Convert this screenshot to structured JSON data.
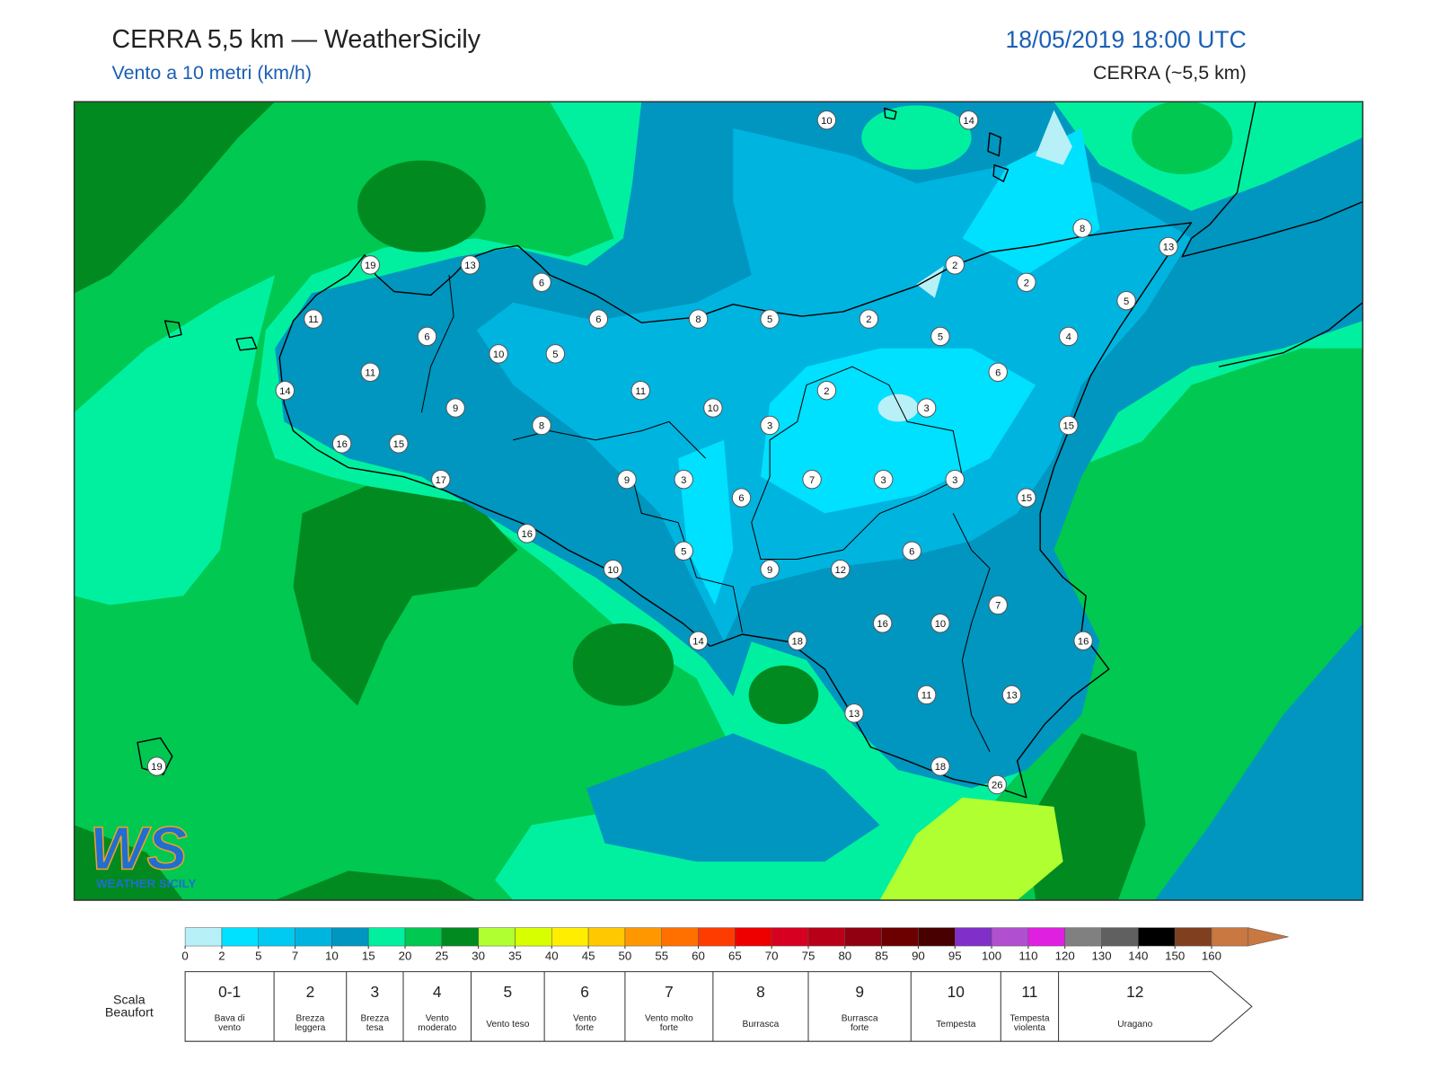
{
  "header": {
    "title": "CERRA 5,5 km — WeatherSicily",
    "subtitle": "Vento a 10 metri (km/h)",
    "datetime": "18/05/2019 18:00 UTC",
    "model": "CERRA (~5,5 km)"
  },
  "map": {
    "station_values": [
      10,
      14,
      8,
      13,
      19,
      13,
      6,
      2,
      2,
      5,
      11,
      6,
      8,
      5,
      2,
      6,
      10,
      5,
      5,
      4,
      11,
      6,
      14,
      11,
      2,
      10,
      9,
      3,
      8,
      3,
      15,
      16,
      15,
      17,
      9,
      3,
      7,
      3,
      3,
      6,
      15,
      16,
      6,
      5,
      10,
      9,
      12,
      7,
      16,
      10,
      18,
      14,
      16,
      11,
      13,
      13,
      19,
      18,
      26
    ]
  },
  "logo": {
    "mark": "WS",
    "text": "WEATHER SICILY"
  },
  "colorbar": {
    "ticks": [
      0,
      2,
      5,
      7,
      10,
      15,
      20,
      25,
      30,
      35,
      40,
      45,
      50,
      55,
      60,
      65,
      70,
      75,
      80,
      85,
      90,
      95,
      100,
      110,
      120,
      130,
      140,
      150,
      160
    ],
    "colors": [
      "#b8f0f8",
      "#00e0ff",
      "#00caf2",
      "#00b4e0",
      "#0096c0",
      "#00f0a0",
      "#00c850",
      "#008a20",
      "#b0ff30",
      "#d8ff00",
      "#ffee00",
      "#ffc800",
      "#ff9800",
      "#ff7000",
      "#ff3c00",
      "#ee0000",
      "#d80020",
      "#b80018",
      "#900010",
      "#6c0000",
      "#480000",
      "#8030c8",
      "#b050d0",
      "#e020e0",
      "#808080",
      "#606060",
      "#000000",
      "#804020",
      "#c87840"
    ],
    "extend_color": "#c87840"
  },
  "beaufort": {
    "title": [
      "Scala",
      "Beaufort"
    ],
    "classes": [
      {
        "force": "0-1",
        "label": [
          "Bava di",
          "vento"
        ]
      },
      {
        "force": 2,
        "label": [
          "Brezza",
          "leggera"
        ]
      },
      {
        "force": 3,
        "label": [
          "Brezza",
          "tesa"
        ]
      },
      {
        "force": 4,
        "label": [
          "Vento",
          "moderato"
        ]
      },
      {
        "force": 5,
        "label": [
          "Vento teso"
        ]
      },
      {
        "force": 6,
        "label": [
          "Vento",
          "forte"
        ]
      },
      {
        "force": 7,
        "label": [
          "Vento molto",
          "forte"
        ]
      },
      {
        "force": 8,
        "label": [
          "Burrasca"
        ]
      },
      {
        "force": 9,
        "label": [
          "Burrasca",
          "forte"
        ]
      },
      {
        "force": 10,
        "label": [
          "Tempesta"
        ]
      },
      {
        "force": 11,
        "label": [
          "Tempesta",
          "violenta"
        ]
      },
      {
        "force": 12,
        "label": [
          "Uragano"
        ]
      }
    ]
  }
}
